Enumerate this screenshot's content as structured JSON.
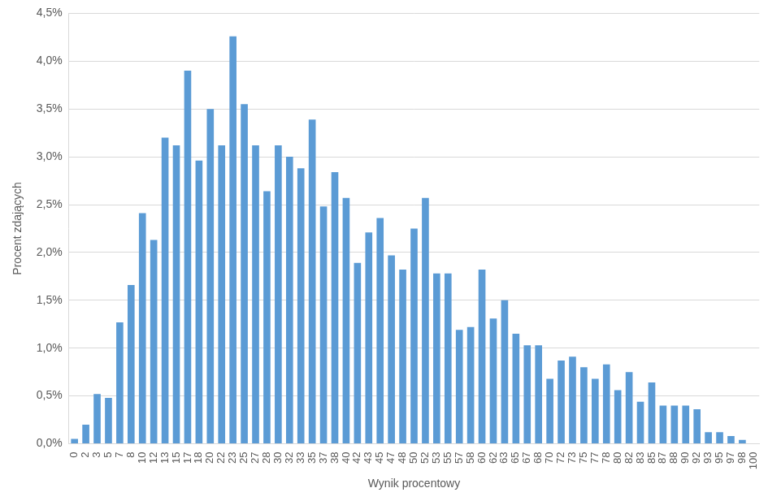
{
  "chart_data": {
    "type": "bar",
    "x_label": "Wynik procentowy",
    "y_label": "Procent zdających",
    "categories": [
      "0",
      "2",
      "3",
      "5",
      "7",
      "8",
      "10",
      "12",
      "13",
      "15",
      "17",
      "18",
      "20",
      "22",
      "23",
      "25",
      "27",
      "28",
      "30",
      "32",
      "33",
      "35",
      "37",
      "38",
      "40",
      "42",
      "43",
      "45",
      "47",
      "48",
      "50",
      "52",
      "53",
      "55",
      "57",
      "58",
      "60",
      "62",
      "63",
      "65",
      "67",
      "68",
      "70",
      "72",
      "73",
      "75",
      "77",
      "78",
      "80",
      "82",
      "83",
      "85",
      "87",
      "88",
      "90",
      "92",
      "93",
      "95",
      "97",
      "98",
      "100"
    ],
    "values": [
      0.05,
      0.2,
      0.52,
      0.48,
      1.27,
      1.66,
      2.41,
      2.13,
      3.2,
      3.12,
      3.9,
      2.96,
      3.5,
      3.12,
      4.26,
      3.55,
      3.12,
      2.64,
      3.12,
      3.0,
      2.88,
      3.39,
      2.48,
      2.84,
      2.57,
      1.89,
      2.21,
      2.36,
      1.97,
      1.82,
      2.25,
      2.57,
      1.78,
      1.78,
      1.19,
      1.22,
      1.82,
      1.31,
      1.5,
      1.15,
      1.03,
      1.03,
      0.68,
      0.87,
      0.91,
      0.8,
      0.68,
      0.83,
      0.56,
      0.75,
      0.44,
      0.64,
      0.4,
      0.4,
      0.4,
      0.36,
      0.12,
      0.12,
      0.08,
      0.04,
      0
    ],
    "color": "#5b9bd5",
    "ylim": [
      0,
      4.5
    ],
    "yticks": [
      {
        "value": 0,
        "label": "0,0%"
      },
      {
        "value": 0.5,
        "label": "0,5%"
      },
      {
        "value": 1,
        "label": "1,0%"
      },
      {
        "value": 1.5,
        "label": "1,5%"
      },
      {
        "value": 2,
        "label": "2,0%"
      },
      {
        "value": 2.5,
        "label": "2,5%"
      },
      {
        "value": 3,
        "label": "3,0%"
      },
      {
        "value": 3.5,
        "label": "3,5%"
      },
      {
        "value": 4,
        "label": "4,0%"
      },
      {
        "value": 4.5,
        "label": "4,5%"
      }
    ],
    "grid": true
  }
}
